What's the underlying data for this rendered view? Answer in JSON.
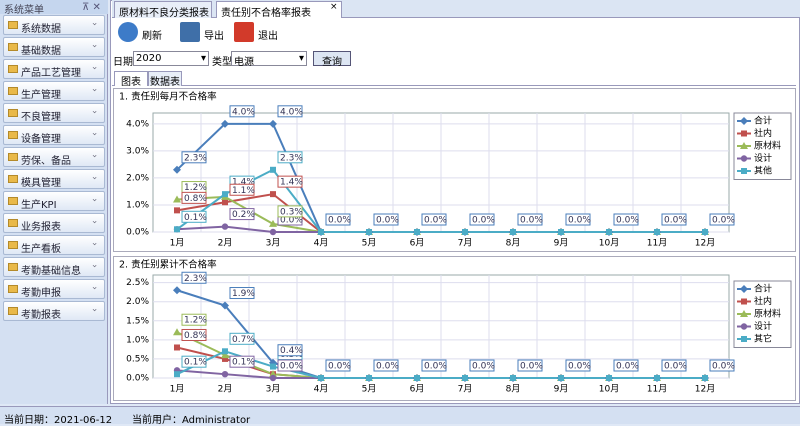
{
  "ui": {
    "menu": {
      "title": "系统菜单",
      "items": [
        "系统数据",
        "基础数据",
        "产品工艺管理",
        "生产管理",
        "不良管理",
        "设备管理",
        "劳保、备品",
        "模具管理",
        "生产KPI",
        "业务报表",
        "生产看板",
        "考勤基础信息",
        "考勤申报",
        "考勤报表"
      ]
    },
    "tabs": [
      "原材料不良分类报表",
      "责任别不合格率报表"
    ],
    "toolbar": [
      "刷新",
      "导出",
      "退出"
    ],
    "filter": {
      "date_label": "日期",
      "date": "2020",
      "type_label": "类型",
      "type": "电源",
      "query": "查询"
    },
    "subtabs": [
      "图表",
      "数据表"
    ],
    "status": {
      "date": "当前日期：2021-06-12",
      "user": "当前用户：Administrator"
    }
  },
  "chart_data": [
    {
      "type": "line",
      "title": "1. 责任别每月不合格率",
      "categories": [
        "1月",
        "2月",
        "3月",
        "4月",
        "5月",
        "6月",
        "7月",
        "8月",
        "9月",
        "10月",
        "11月",
        "12月"
      ],
      "ylim": [
        0,
        4.4
      ],
      "yticks": [
        {
          "value": 0,
          "label": "0.0%"
        },
        {
          "value": 1,
          "label": "1.0%"
        },
        {
          "value": 2,
          "label": "2.0%"
        },
        {
          "value": 3,
          "label": "3.0%"
        },
        {
          "value": 4,
          "label": "4.0%"
        }
      ],
      "grid": true,
      "legend": "right",
      "series": [
        {
          "name": "合计",
          "color": "#4a7ebb",
          "marker": "diamond",
          "values": [
            2.3,
            4.0,
            4.0,
            0,
            0,
            0,
            0,
            0,
            0,
            0,
            0,
            0
          ],
          "value_labels": [
            "2.3%",
            "4.0%",
            "4.0%",
            "0.0%",
            "0.0%",
            "0.0%",
            "0.0%",
            "0.0%",
            "0.0%",
            "0.0%",
            "0.0%",
            "0.0%"
          ]
        },
        {
          "name": "社内",
          "color": "#c0504d",
          "marker": "square",
          "values": [
            0.8,
            1.1,
            1.4,
            0,
            0,
            0,
            0,
            0,
            0,
            0,
            0,
            0
          ],
          "value_labels": [
            "0.8%",
            "1.1%",
            "1.4%",
            null,
            null,
            null,
            null,
            null,
            null,
            null,
            null,
            null
          ]
        },
        {
          "name": "原材料",
          "color": "#9bbb59",
          "marker": "triangle",
          "values": [
            1.2,
            1.3,
            0.3,
            0,
            0,
            0,
            0,
            0,
            0,
            0,
            0,
            0
          ],
          "value_labels": [
            "1.2%",
            null,
            "0.3%",
            null,
            null,
            null,
            null,
            null,
            null,
            null,
            null,
            null
          ]
        },
        {
          "name": "设计",
          "color": "#8064a2",
          "marker": "circle",
          "values": [
            0.1,
            0.2,
            0.0,
            0,
            0,
            0,
            0,
            0,
            0,
            0,
            0,
            0
          ],
          "value_labels": [
            null,
            "0.2%",
            "0.0%",
            null,
            null,
            null,
            null,
            null,
            null,
            null,
            null,
            null
          ]
        },
        {
          "name": "其他",
          "color": "#4bacc6",
          "marker": "square",
          "values": [
            0.1,
            1.4,
            2.3,
            0,
            0,
            0,
            0,
            0,
            0,
            0,
            0,
            0
          ],
          "value_labels": [
            "0.1%",
            "1.4%",
            "2.3%",
            null,
            null,
            null,
            null,
            null,
            null,
            null,
            null,
            null
          ]
        }
      ]
    },
    {
      "type": "line",
      "title": "2. 责任别累计不合格率",
      "categories": [
        "1月",
        "2月",
        "3月",
        "4月",
        "5月",
        "6月",
        "7月",
        "8月",
        "9月",
        "10月",
        "11月",
        "12月"
      ],
      "ylim": [
        0,
        2.7
      ],
      "yticks": [
        {
          "value": 0,
          "label": "0.0%"
        },
        {
          "value": 0.5,
          "label": "0.5%"
        },
        {
          "value": 1,
          "label": "1.0%"
        },
        {
          "value": 1.5,
          "label": "1.5%"
        },
        {
          "value": 2,
          "label": "2.0%"
        },
        {
          "value": 2.5,
          "label": "2.5%"
        }
      ],
      "grid": true,
      "legend": "right",
      "series": [
        {
          "name": "合计",
          "color": "#4a7ebb",
          "marker": "diamond",
          "values": [
            2.3,
            1.9,
            0.4,
            0,
            0,
            0,
            0,
            0,
            0,
            0,
            0,
            0
          ],
          "value_labels": [
            "2.3%",
            "1.9%",
            "0.4%",
            "0.0%",
            "0.0%",
            "0.0%",
            "0.0%",
            "0.0%",
            "0.0%",
            "0.0%",
            "0.0%",
            "0.0%"
          ]
        },
        {
          "name": "社内",
          "color": "#c0504d",
          "marker": "square",
          "values": [
            0.8,
            0.5,
            0.1,
            0,
            0,
            0,
            0,
            0,
            0,
            0,
            0,
            0
          ],
          "value_labels": [
            "0.8%",
            null,
            null,
            null,
            null,
            null,
            null,
            null,
            null,
            null,
            null,
            null
          ]
        },
        {
          "name": "原材料",
          "color": "#9bbb59",
          "marker": "triangle",
          "values": [
            1.2,
            0.6,
            0.1,
            0,
            0,
            0,
            0,
            0,
            0,
            0,
            0,
            0
          ],
          "value_labels": [
            "1.2%",
            null,
            null,
            null,
            null,
            null,
            null,
            null,
            null,
            null,
            null,
            null
          ]
        },
        {
          "name": "设计",
          "color": "#8064a2",
          "marker": "circle",
          "values": [
            0.2,
            0.1,
            0.0,
            0,
            0,
            0,
            0,
            0,
            0,
            0,
            0,
            0
          ],
          "value_labels": [
            null,
            "0.1%",
            "0.0%",
            null,
            null,
            null,
            null,
            null,
            null,
            null,
            null,
            null
          ]
        },
        {
          "name": "其它",
          "color": "#4bacc6",
          "marker": "square",
          "values": [
            0.1,
            0.7,
            0.3,
            0,
            0,
            0,
            0,
            0,
            0,
            0,
            0,
            0
          ],
          "value_labels": [
            "0.1%",
            "0.7%",
            "0.3%",
            null,
            null,
            null,
            null,
            null,
            null,
            null,
            null,
            null
          ]
        }
      ]
    }
  ]
}
